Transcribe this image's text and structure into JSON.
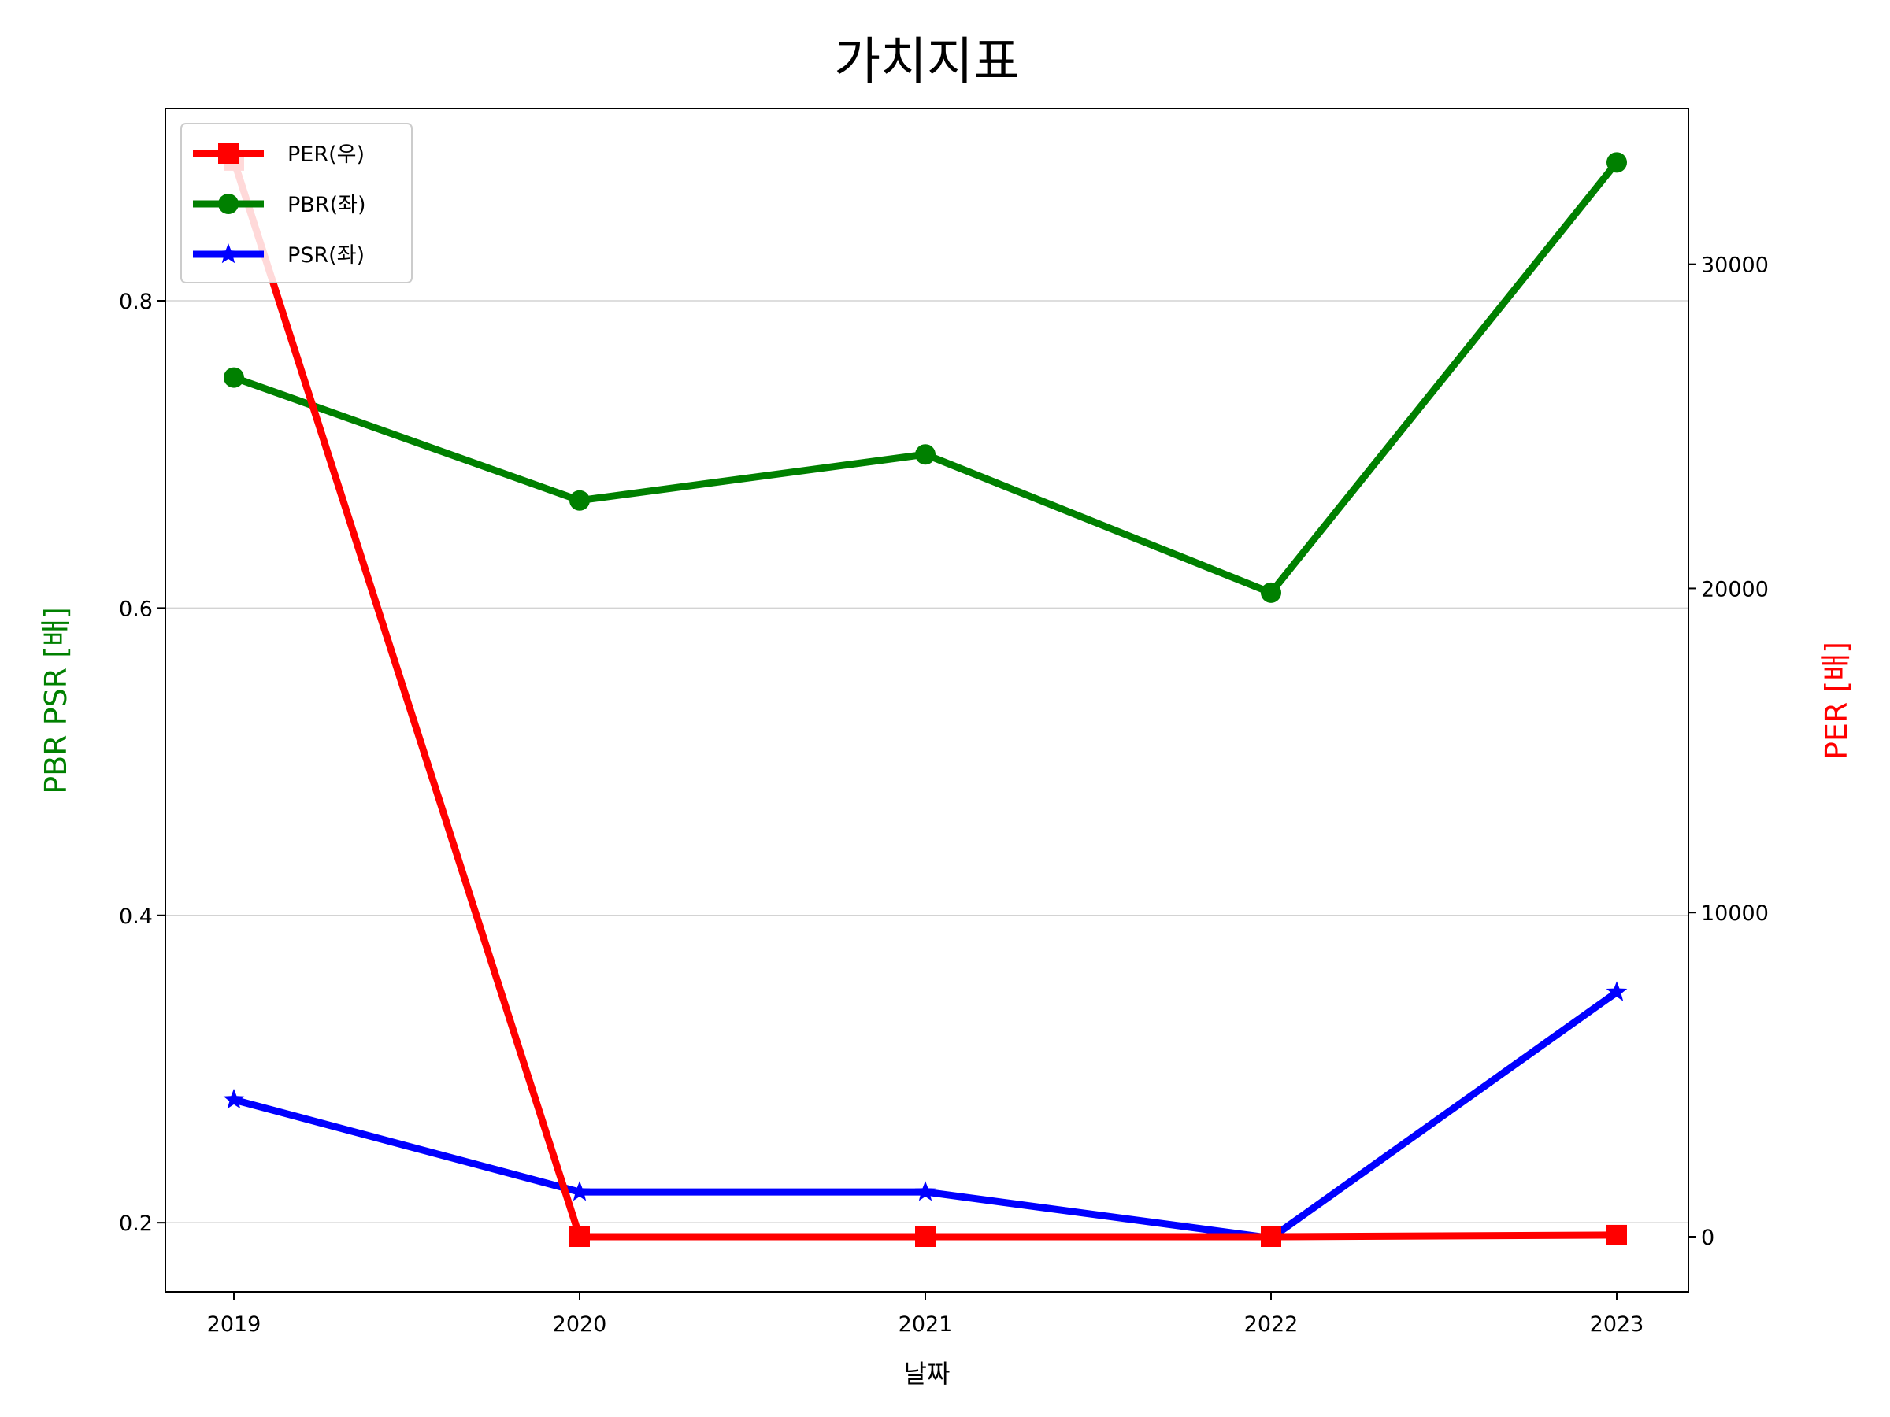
{
  "chart_data": {
    "type": "line",
    "title": "가치지표",
    "xlabel": "날짜",
    "ylabel_left": "PBR PSR [배]",
    "ylabel_right": "PER [배]",
    "categories": [
      "2019",
      "2020",
      "2021",
      "2022",
      "2023"
    ],
    "ylim_left": [
      0.155,
      0.925
    ],
    "ylim_right": [
      -1700,
      34800
    ],
    "yticks_left": [
      0.2,
      0.4,
      0.6,
      0.8
    ],
    "yticks_left_labels": [
      "0.2",
      "0.4",
      "0.6",
      "0.8"
    ],
    "yticks_right": [
      0,
      10000,
      20000,
      30000
    ],
    "yticks_right_labels": [
      "0",
      "10000",
      "20000",
      "30000"
    ],
    "grid": "horizontal-left",
    "legend_position": "top-left",
    "series": [
      {
        "name": "PER(우)",
        "axis": "right",
        "color": "#ff0000",
        "marker": "square",
        "values": [
          33200,
          0,
          0,
          0,
          50
        ]
      },
      {
        "name": "PBR(좌)",
        "axis": "left",
        "color": "#008000",
        "marker": "circle",
        "values": [
          0.75,
          0.67,
          0.7,
          0.61,
          0.89
        ]
      },
      {
        "name": "PSR(좌)",
        "axis": "left",
        "color": "#0000ff",
        "marker": "star",
        "values": [
          0.28,
          0.22,
          0.22,
          0.19,
          0.35
        ]
      }
    ]
  }
}
